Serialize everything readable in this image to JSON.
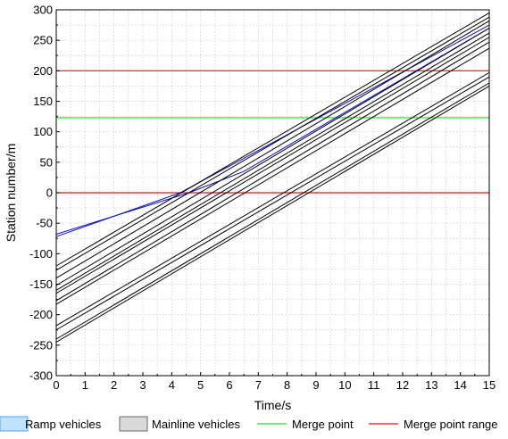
{
  "chart_data": {
    "type": "line",
    "xlabel": "Time/s",
    "ylabel": "Station number/m",
    "xlim": [
      0,
      15
    ],
    "ylim": [
      -300,
      300
    ],
    "x_ticks": [
      0,
      1,
      2,
      3,
      4,
      5,
      6,
      7,
      8,
      9,
      10,
      11,
      12,
      13,
      14,
      15
    ],
    "y_ticks": [
      -300,
      -250,
      -200,
      -150,
      -100,
      -50,
      0,
      50,
      100,
      150,
      200,
      250,
      300
    ],
    "grid": true,
    "legend_position": "bottom",
    "legend": [
      {
        "label": "Ramp vehicles",
        "kind": "patch",
        "fill": "#bfe3ff",
        "stroke": "#5aa0e0"
      },
      {
        "label": "Mainline vehicles",
        "kind": "patch",
        "fill": "#d9d9d9",
        "stroke": "#666666"
      },
      {
        "label": "Merge point",
        "kind": "line",
        "color": "#22dd22"
      },
      {
        "label": "Merge point range",
        "kind": "line",
        "color": "#ee1111"
      }
    ],
    "reference_lines": [
      {
        "name": "Merge point range",
        "y": 0,
        "color": "#ee1111"
      },
      {
        "name": "Merge point",
        "y": 123,
        "color": "#22dd22"
      },
      {
        "name": "Merge point range",
        "y": 200,
        "color": "#ee1111"
      }
    ],
    "series": [
      {
        "group": "ramp",
        "color": "#1010cc",
        "points": [
          [
            0,
            -72
          ],
          [
            4.3,
            0
          ],
          [
            15,
            275
          ]
        ]
      },
      {
        "group": "ramp",
        "color": "#1010cc",
        "points": [
          [
            0,
            -68
          ],
          [
            4.6,
            0
          ],
          [
            6.5,
            35
          ],
          [
            15,
            270
          ]
        ]
      },
      {
        "group": "mainline",
        "color": "#000000",
        "points": [
          [
            0,
            -120
          ],
          [
            15,
            295
          ]
        ]
      },
      {
        "group": "mainline",
        "color": "#000000",
        "points": [
          [
            0,
            -127
          ],
          [
            15,
            288
          ]
        ]
      },
      {
        "group": "mainline",
        "color": "#000000",
        "points": [
          [
            0,
            -140
          ],
          [
            15,
            282
          ]
        ]
      },
      {
        "group": "mainline",
        "color": "#000000",
        "points": [
          [
            0,
            -152
          ],
          [
            15,
            270
          ]
        ]
      },
      {
        "group": "mainline",
        "color": "#000000",
        "points": [
          [
            0,
            -160
          ],
          [
            15,
            262
          ]
        ]
      },
      {
        "group": "mainline",
        "color": "#000000",
        "points": [
          [
            0,
            -165
          ],
          [
            15,
            255
          ]
        ]
      },
      {
        "group": "mainline",
        "color": "#000000",
        "points": [
          [
            0,
            -177
          ],
          [
            15,
            247
          ]
        ]
      },
      {
        "group": "mainline",
        "color": "#000000",
        "points": [
          [
            0,
            -183
          ],
          [
            15,
            237
          ]
        ]
      },
      {
        "group": "mainline",
        "color": "#000000",
        "points": [
          [
            0,
            -218
          ],
          [
            15,
            197
          ]
        ]
      },
      {
        "group": "mainline",
        "color": "#000000",
        "points": [
          [
            0,
            -225
          ],
          [
            15,
            190
          ]
        ]
      },
      {
        "group": "mainline",
        "color": "#000000",
        "points": [
          [
            0,
            -240
          ],
          [
            15,
            180
          ]
        ]
      },
      {
        "group": "mainline",
        "color": "#000000",
        "points": [
          [
            0,
            -245
          ],
          [
            15,
            175
          ]
        ]
      }
    ]
  }
}
